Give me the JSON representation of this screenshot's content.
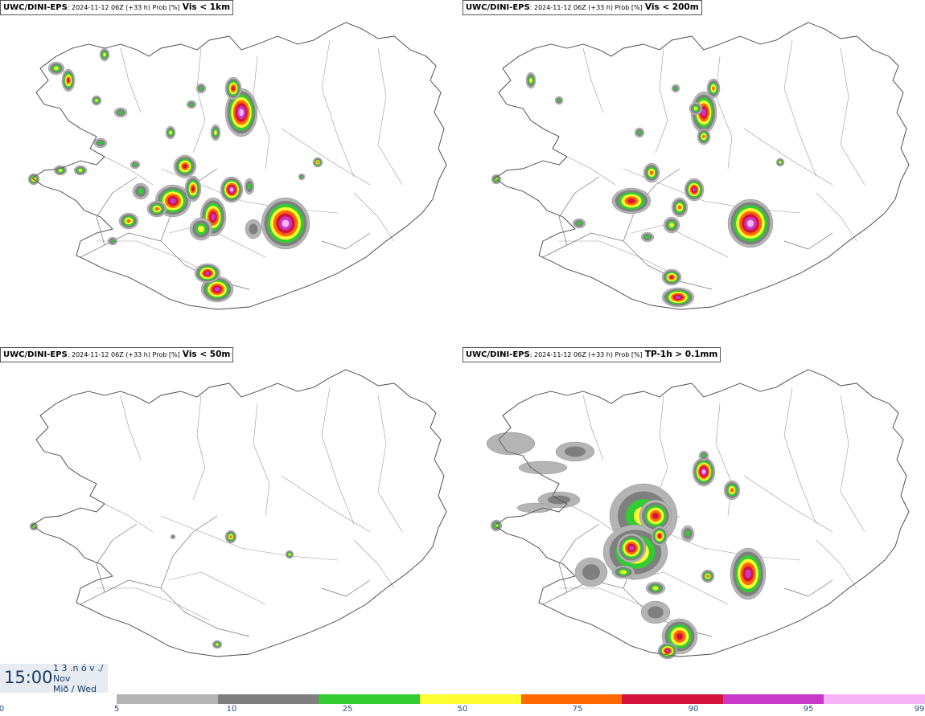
{
  "panels": [
    {
      "id": "tl",
      "title_src": "UWC/DINI-EPS",
      "title_meta": ": 2024-11-12 06Z (+33 h) Prob [%]",
      "title_var": "Vis < 1km"
    },
    {
      "id": "tr",
      "title_src": "UWC/DINI-EPS",
      "title_meta": ": 2024-11-12 06Z (+33 h) Prob [%]",
      "title_var": "Vis < 200m"
    },
    {
      "id": "bl",
      "title_src": "UWC/DINI-EPS",
      "title_meta": ": 2024-11-12 06Z (+33 h) Prob [%]",
      "title_var": "Vis < 50m"
    },
    {
      "id": "br",
      "title_src": "UWC/DINI-EPS",
      "title_meta": ": 2024-11-12 06Z (+33 h) Prob [%]",
      "title_var": "TP-1h > 0.1mm"
    }
  ],
  "valid_time": {
    "time": "15:00",
    "day": "1 3 .n ó v ./",
    "month": "Nov",
    "weekday": "Mið / Wed"
  },
  "colorbar": {
    "ticks": [
      "0",
      "5",
      "10",
      "25",
      "50",
      "75",
      "90",
      "95",
      "99"
    ],
    "colors": [
      "#b4b4b4",
      "#7f7f7f",
      "#33cc33",
      "#ffff33",
      "#ff6a00",
      "#d4143c",
      "#c839c8",
      "#f6b4f6"
    ]
  }
}
